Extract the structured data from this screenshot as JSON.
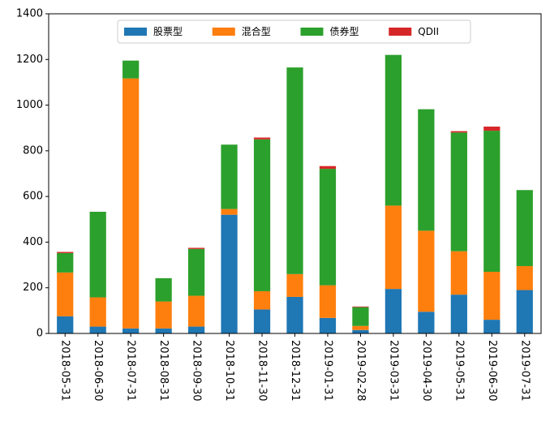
{
  "chart_data": {
    "type": "bar",
    "stacked": true,
    "title": "",
    "xlabel": "",
    "ylabel": "",
    "ylim": [
      0,
      1400
    ],
    "yticks": [
      0,
      200,
      400,
      600,
      800,
      1000,
      1200,
      1400
    ],
    "grid": false,
    "legend_position": "top-center",
    "categories": [
      "2018-05-31",
      "2018-06-30",
      "2018-07-31",
      "2018-08-31",
      "2018-09-30",
      "2018-10-31",
      "2018-11-30",
      "2018-12-31",
      "2019-01-31",
      "2019-02-28",
      "2019-03-31",
      "2019-04-30",
      "2019-05-31",
      "2019-06-30",
      "2019-07-31"
    ],
    "series": [
      {
        "name": "股票型",
        "color": "#1f77b4",
        "values": [
          75,
          30,
          22,
          22,
          30,
          520,
          105,
          160,
          68,
          15,
          195,
          95,
          170,
          60,
          190
        ]
      },
      {
        "name": "混合型",
        "color": "#ff7f0e",
        "values": [
          192,
          128,
          1095,
          118,
          135,
          25,
          80,
          100,
          143,
          18,
          365,
          355,
          190,
          210,
          105
        ]
      },
      {
        "name": "债券型",
        "color": "#2ca02c",
        "values": [
          85,
          375,
          78,
          102,
          205,
          282,
          665,
          905,
          510,
          82,
          660,
          532,
          520,
          618,
          333
        ]
      },
      {
        "name": "QDII",
        "color": "#d62728",
        "values": [
          5,
          0,
          0,
          0,
          5,
          0,
          8,
          0,
          12,
          3,
          0,
          0,
          6,
          18,
          0
        ]
      }
    ]
  }
}
